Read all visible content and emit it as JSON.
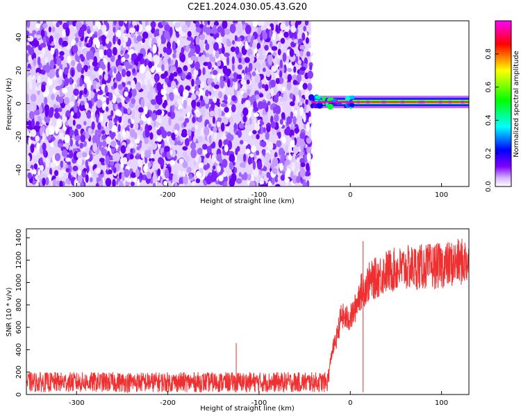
{
  "title": "C2E1.2024.030.05.43.G20",
  "chart_data": [
    {
      "type": "heatmap",
      "title": "C2E1.2024.030.05.43.G20",
      "xlabel": "Height of straight line (km)",
      "ylabel": "Frequency (Hz)",
      "xlim": [
        -355,
        130
      ],
      "ylim": [
        -50,
        50
      ],
      "xticks": [
        -300,
        -200,
        -100,
        0,
        100
      ],
      "yticks": [
        -40,
        -20,
        0,
        20,
        40
      ],
      "noise_region_x": [
        -355,
        -43
      ],
      "signal_band": {
        "x_range": [
          -43,
          130
        ],
        "frequency_hz": 1,
        "peak_amplitude": 0.95
      },
      "colorbar": {
        "label": "Normalized spectral amplitude",
        "range": [
          0.0,
          1.0
        ],
        "ticks": [
          0.0,
          0.2,
          0.4,
          0.6,
          0.8
        ],
        "colors": [
          "#ffffff",
          "#8000ff",
          "#0000ff",
          "#00ffff",
          "#00ff00",
          "#ffff00",
          "#ff0000",
          "#ff00ff"
        ]
      },
      "grid": false
    },
    {
      "type": "line",
      "xlabel": "Height of straight line (km)",
      "ylabel": "SNR (10 * v/v)",
      "xlim": [
        -355,
        130
      ],
      "ylim": [
        0,
        1480
      ],
      "xticks": [
        -300,
        -200,
        -100,
        0,
        100
      ],
      "yticks": [
        0,
        200,
        400,
        600,
        800,
        1000,
        1200,
        1400
      ],
      "grid": false,
      "series": [
        {
          "color": "#f03030",
          "x": [
            -355,
            -300,
            -250,
            -200,
            -150,
            -100,
            -50,
            -25,
            -20,
            -15,
            -10,
            -5,
            0,
            5,
            10,
            20,
            30,
            40,
            60,
            80,
            100,
            120,
            130
          ],
          "y": [
            110,
            110,
            110,
            110,
            110,
            110,
            110,
            110,
            390,
            500,
            700,
            680,
            680,
            760,
            900,
            1000,
            1050,
            1100,
            1130,
            1140,
            1150,
            1180,
            1200
          ]
        }
      ],
      "spikes": [
        {
          "x": -125,
          "y": 460
        },
        {
          "x": 14,
          "y": 1370
        }
      ]
    }
  ]
}
